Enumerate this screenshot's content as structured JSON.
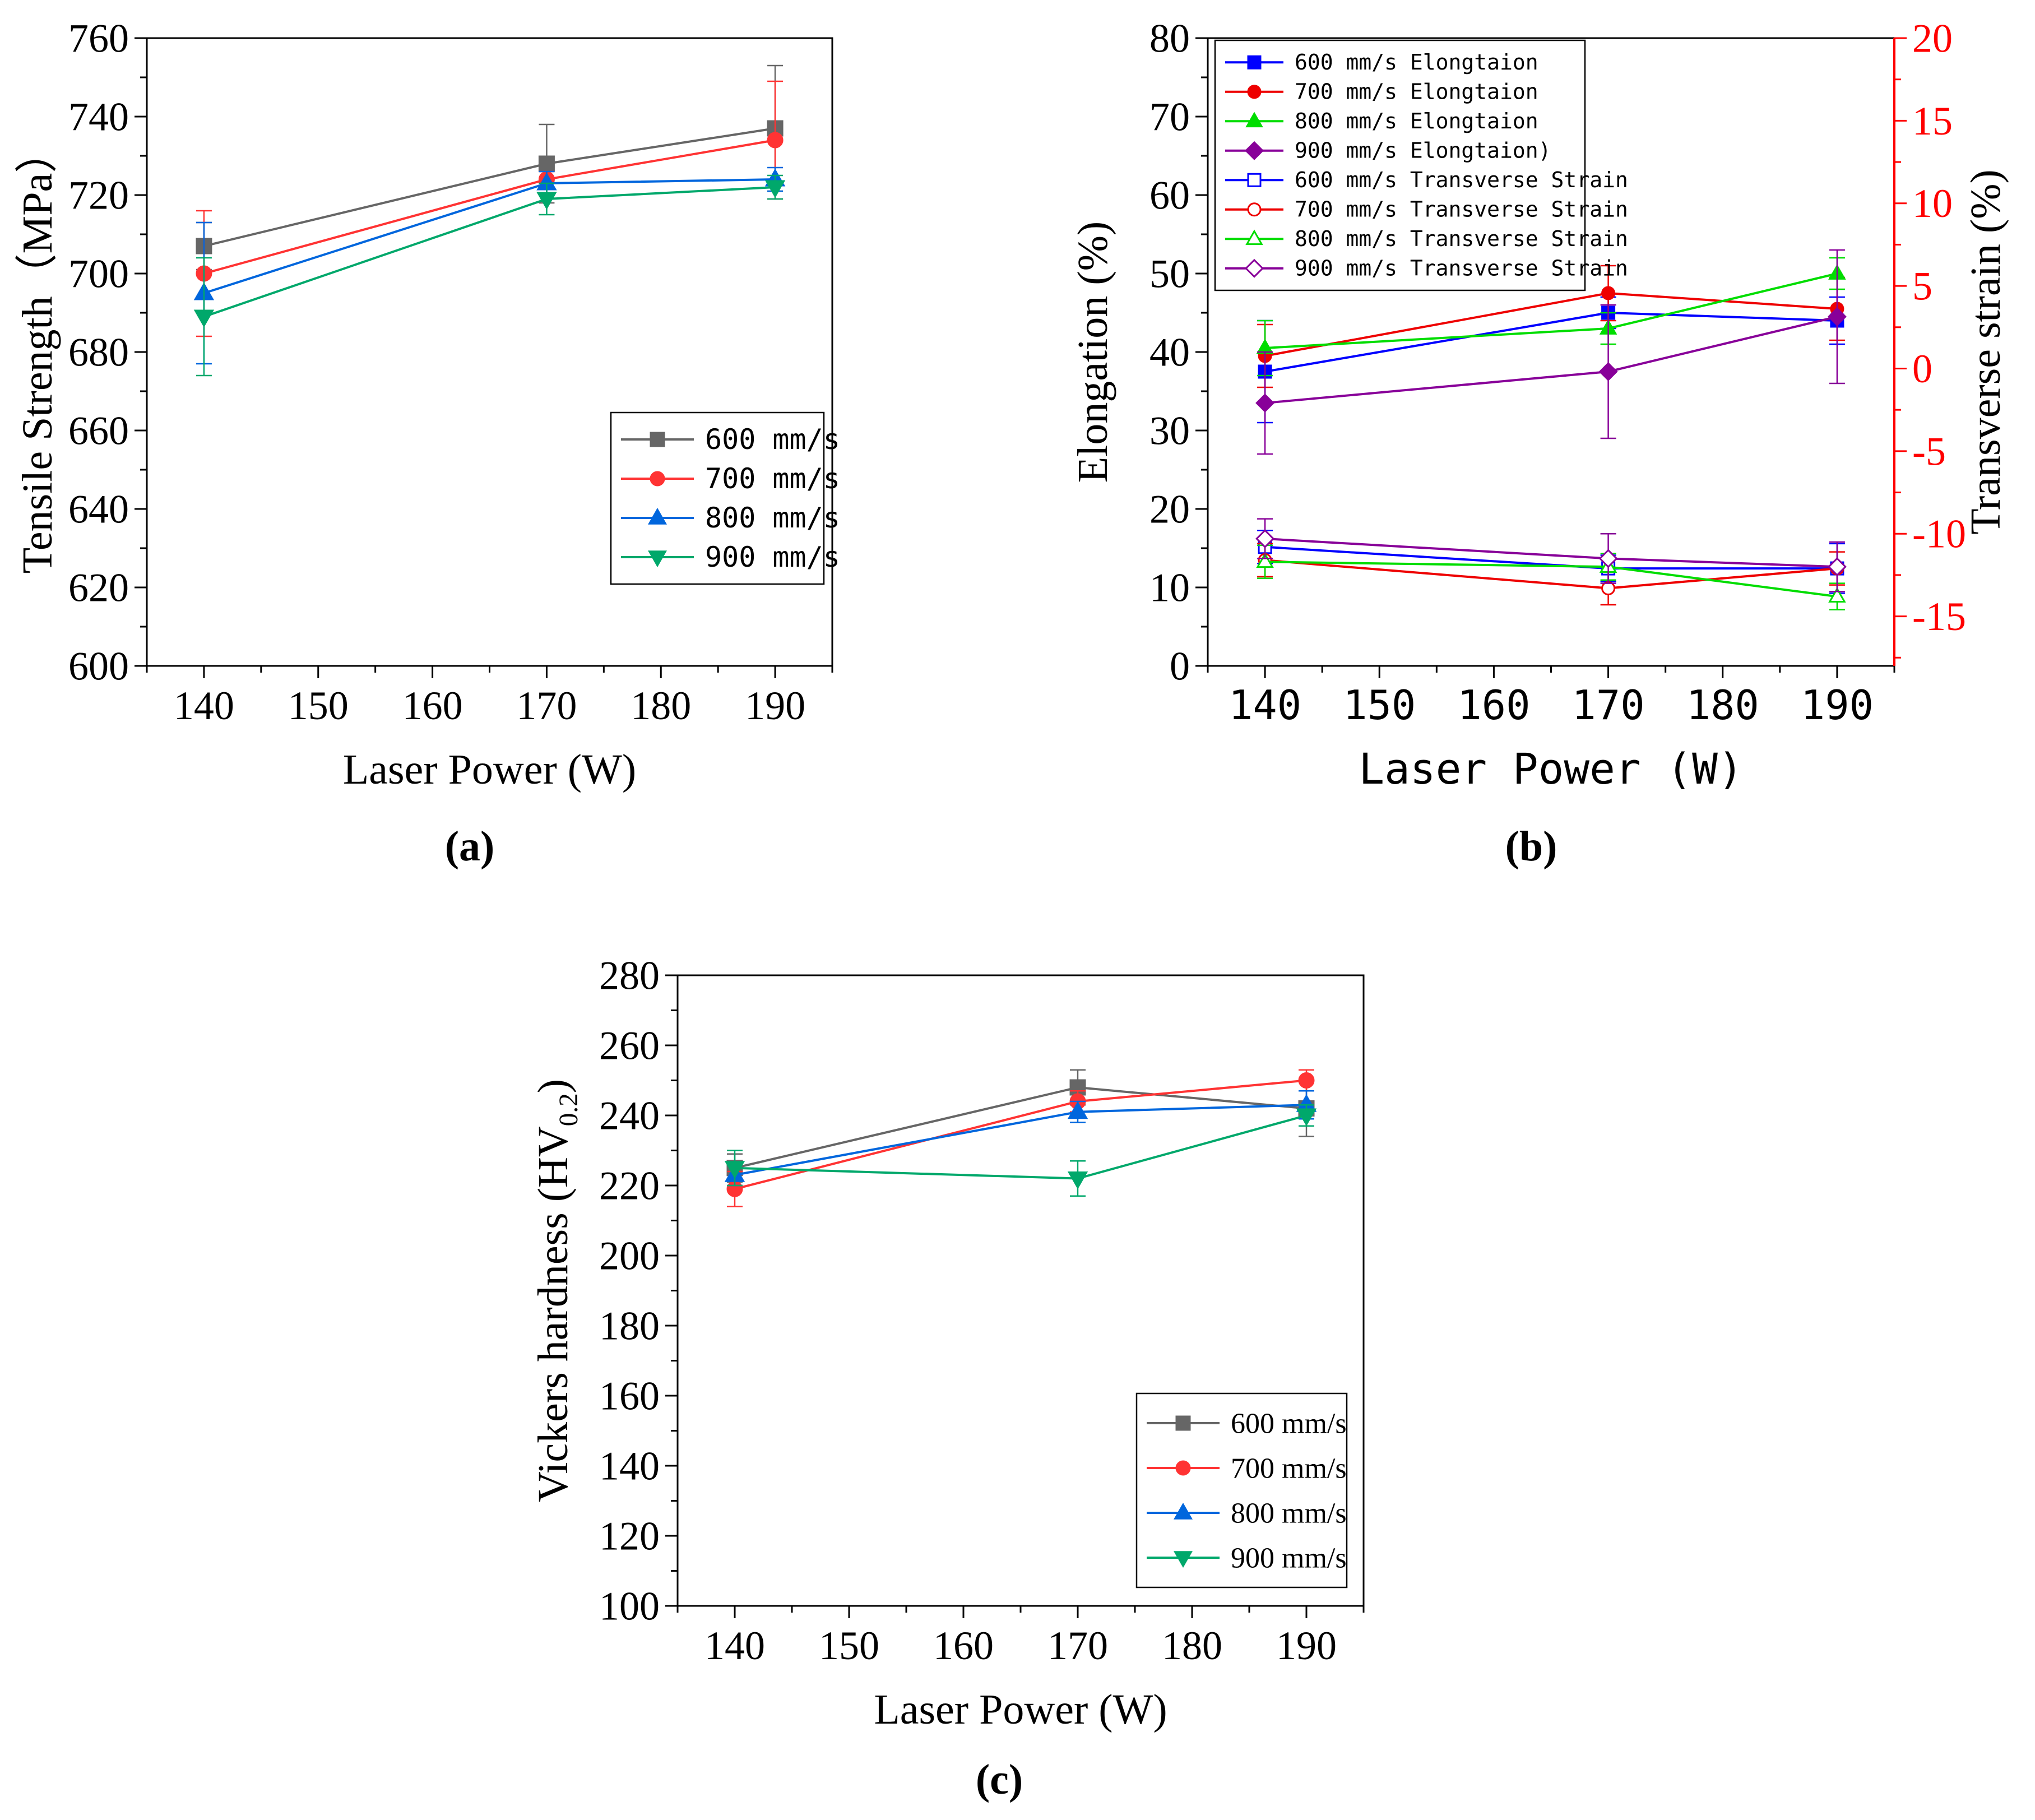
{
  "colors": {
    "s600": "#666666",
    "s700": "#ff3333",
    "s800": "#0066dd",
    "s900": "#00a86b",
    "b600": "#0000ff",
    "b700": "#ee0000",
    "b800": "#00dd00",
    "b900": "#880099",
    "right_axis": "#ff0000"
  },
  "chart_data": [
    {
      "id": "a",
      "type": "line",
      "panel_label": "(a)",
      "xlabel": "Laser Power (W)",
      "ylabel": "Tensile Strength（MPa）",
      "xlim": [
        135,
        195
      ],
      "xticks": [
        140,
        150,
        160,
        170,
        180,
        190
      ],
      "ylim": [
        600,
        760
      ],
      "yticks": [
        600,
        620,
        640,
        660,
        680,
        700,
        720,
        740,
        760
      ],
      "x": [
        140,
        170,
        190
      ],
      "legend_position": "lower-right",
      "series": [
        {
          "name": "600 mm/s",
          "values": [
            707,
            728,
            737
          ],
          "errors": [
            6,
            10,
            16
          ],
          "marker": "square",
          "color_key": "s600"
        },
        {
          "name": "700 mm/s",
          "values": [
            700,
            724,
            734
          ],
          "errors": [
            16,
            2,
            15
          ],
          "marker": "circle",
          "color_key": "s700"
        },
        {
          "name": "800 mm/s",
          "values": [
            695,
            723,
            724
          ],
          "errors": [
            18,
            3,
            3
          ],
          "marker": "triangle-up",
          "color_key": "s800"
        },
        {
          "name": "900 mm/s",
          "values": [
            689,
            719,
            722
          ],
          "errors": [
            15,
            4,
            3
          ],
          "marker": "triangle-down",
          "color_key": "s900"
        }
      ]
    },
    {
      "id": "b",
      "type": "line",
      "panel_label": "(b)",
      "xlabel": "Laser Power (W)",
      "ylabel": "Elongation (%)",
      "ylabel_right": "Transverse strain (%)",
      "xlim": [
        135,
        195
      ],
      "xticks": [
        140,
        150,
        160,
        170,
        180,
        190
      ],
      "ylim": [
        0,
        80
      ],
      "yticks": [
        0,
        10,
        20,
        30,
        40,
        50,
        60,
        70,
        80
      ],
      "ylim_right": [
        -18,
        20
      ],
      "yticks_right": [
        -15,
        -10,
        -5,
        0,
        5,
        10,
        15,
        20
      ],
      "x": [
        140,
        170,
        190
      ],
      "legend_position": "top-left",
      "series": [
        {
          "name": "600 mm/s Elongtaion",
          "axis": "left",
          "values": [
            37.5,
            45,
            44
          ],
          "errors": [
            6.5,
            2,
            3
          ],
          "marker": "square",
          "filled": true,
          "color_key": "b600"
        },
        {
          "name": "700 mm/s Elongtaion",
          "axis": "left",
          "values": [
            39.5,
            47.5,
            45.5
          ],
          "errors": [
            4,
            3.5,
            4
          ],
          "marker": "circle",
          "filled": true,
          "color_key": "b700"
        },
        {
          "name": "800 mm/s Elongtaion",
          "axis": "left",
          "values": [
            40.5,
            43,
            50
          ],
          "errors": [
            3.5,
            2,
            2
          ],
          "marker": "triangle-up",
          "filled": true,
          "color_key": "b800"
        },
        {
          "name": "900 mm/s Elongtaion)",
          "axis": "left",
          "values": [
            33.5,
            37.5,
            44.5
          ],
          "errors": [
            6.5,
            8.5,
            8.5
          ],
          "marker": "diamond",
          "filled": true,
          "color_key": "b900"
        },
        {
          "name": "600 mm/s Transverse Strain",
          "axis": "right",
          "values": [
            -10.8,
            -12.1,
            -12.1
          ],
          "errors": [
            1,
            0.8,
            1.5
          ],
          "marker": "square",
          "filled": false,
          "color_key": "b600"
        },
        {
          "name": "700 mm/s Transverse Strain",
          "axis": "right",
          "values": [
            -11.6,
            -13.3,
            -12.1
          ],
          "errors": [
            1,
            1,
            1
          ],
          "marker": "circle",
          "filled": false,
          "color_key": "b700"
        },
        {
          "name": "800 mm/s Transverse Strain",
          "axis": "right",
          "values": [
            -11.7,
            -12,
            -13.8
          ],
          "errors": [
            1,
            0.8,
            0.8
          ],
          "marker": "triangle-up",
          "filled": false,
          "color_key": "b800"
        },
        {
          "name": "900 mm/s Transverse Strain",
          "axis": "right",
          "values": [
            -10.3,
            -11.5,
            -12
          ],
          "errors": [
            1.2,
            1.5,
            1.5
          ],
          "marker": "diamond",
          "filled": false,
          "color_key": "b900"
        }
      ]
    },
    {
      "id": "c",
      "type": "line",
      "panel_label": "(c)",
      "xlabel": "Laser Power (W)",
      "ylabel": "Vickers hardness (HV",
      "ylabel_sub": "0.2",
      "ylabel_end": ")",
      "xlim": [
        135,
        195
      ],
      "xticks": [
        140,
        150,
        160,
        170,
        180,
        190
      ],
      "ylim": [
        100,
        280
      ],
      "yticks": [
        100,
        120,
        140,
        160,
        180,
        200,
        220,
        240,
        260,
        280
      ],
      "x": [
        140,
        170,
        190
      ],
      "legend_position": "lower-right",
      "series": [
        {
          "name": "600 mm/s",
          "values": [
            225,
            248,
            242
          ],
          "errors": [
            4,
            5,
            8
          ],
          "marker": "square",
          "color_key": "s600"
        },
        {
          "name": "700 mm/s",
          "values": [
            219,
            244,
            250
          ],
          "errors": [
            5,
            3,
            3
          ],
          "marker": "circle",
          "color_key": "s700"
        },
        {
          "name": "800 mm/s",
          "values": [
            223,
            241,
            243
          ],
          "errors": [
            3,
            3,
            4
          ],
          "marker": "triangle-up",
          "color_key": "s800"
        },
        {
          "name": "900 mm/s",
          "values": [
            225,
            222,
            240
          ],
          "errors": [
            5,
            5,
            3
          ],
          "marker": "triangle-down",
          "color_key": "s900"
        }
      ]
    }
  ]
}
